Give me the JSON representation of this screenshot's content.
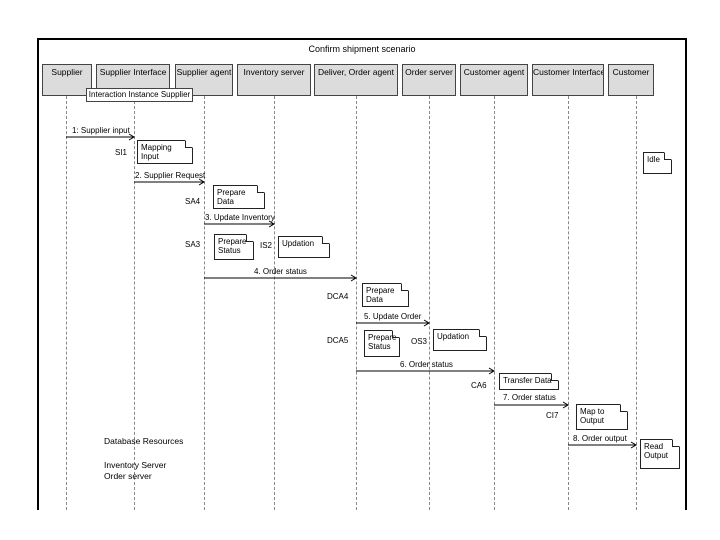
{
  "title": "Confirm shipment scenario",
  "lanes": [
    "Supplier",
    "Supplier Interface",
    "Supplier agent",
    "Inventory server",
    "Deliver, Order agent",
    "Order server",
    "Customer agent",
    "Customer Interface",
    "Customer"
  ],
  "instance_label": "Interaction Instance Supplier",
  "messages": [
    {
      "label": "1: Supplier input"
    },
    {
      "label": "2. Supplier Request"
    },
    {
      "label": "3. Update Inventory"
    },
    {
      "label": "4. Order status"
    },
    {
      "label": "5. Update Order"
    },
    {
      "label": "6. Order status"
    },
    {
      "label": "7. Order status"
    },
    {
      "label": "8. Order output"
    }
  ],
  "step_ids": [
    "SI1",
    "SA4",
    "SA3",
    "IS2",
    "DCA4",
    "DCA5",
    "OS3",
    "CA6",
    "CI7"
  ],
  "notes": [
    "Mapping Input",
    "Prepare Data",
    "Prepare Status",
    "Updation",
    "Prepare Data",
    "Prepare Status",
    "Updation",
    "Transfer Data",
    "Map to Output",
    "Idle",
    "Read Output"
  ],
  "database_resources": {
    "heading": "Database Resources",
    "items": [
      "Inventory Server",
      "Order server"
    ]
  }
}
